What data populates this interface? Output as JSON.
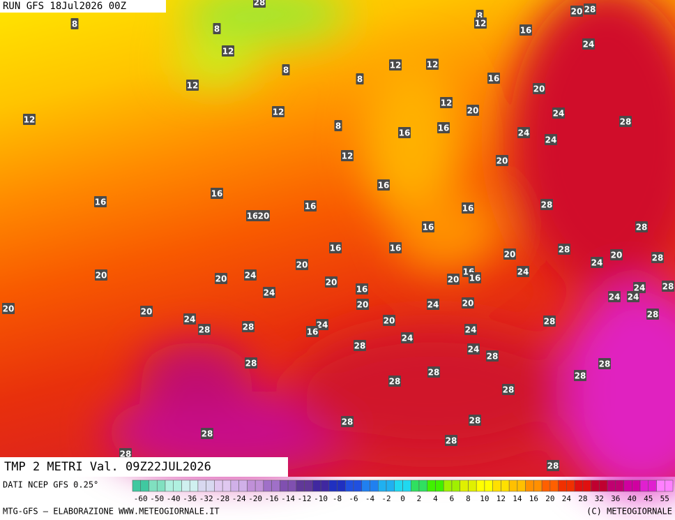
{
  "header": {
    "run": "RUN GFS 18Jul2026 00Z"
  },
  "title": "TMP 2 METRI Val. 09Z22JUL2026",
  "map_labels": [
    8,
    8,
    12,
    8,
    12,
    12,
    12,
    8,
    8,
    12,
    12,
    12,
    16,
    16,
    12,
    16,
    8,
    12,
    16,
    20,
    28,
    24,
    16,
    20,
    20,
    24,
    28,
    24,
    24,
    20,
    16,
    16,
    16,
    28,
    16,
    16,
    20,
    16,
    28,
    16,
    16,
    28,
    20,
    20,
    28,
    24,
    20,
    24,
    16,
    16,
    20,
    20,
    24,
    20,
    28,
    24,
    20,
    16,
    24,
    24,
    24,
    20,
    24,
    20,
    20,
    20,
    28,
    24,
    20,
    28,
    24,
    16,
    28,
    28,
    24,
    24,
    28,
    24,
    28,
    28,
    28,
    28,
    28,
    28,
    28,
    28,
    28,
    28,
    28,
    28,
    28,
    28
  ],
  "footer": {
    "source": "DATI NCEP GFS 0.25°",
    "credit": "MTG-GFS — ELABORAZIONE WWW.METEOGIORNALE.IT",
    "copyright": "(C) METEOGIORNALE"
  },
  "colorbar": {
    "ticks": [
      -60,
      -50,
      -40,
      -36,
      -32,
      -28,
      -24,
      -20,
      -16,
      -14,
      -12,
      -10,
      -8,
      -6,
      -4,
      -2,
      0,
      2,
      4,
      6,
      8,
      10,
      12,
      14,
      16,
      20,
      24,
      28,
      32,
      36,
      40,
      45,
      55
    ],
    "colors": [
      "#40c8a0",
      "#80e0c0",
      "#b0f0e0",
      "#d0f0f0",
      "#d8d8f0",
      "#e0c8f0",
      "#d0b0e8",
      "#c090d8",
      "#a070c8",
      "#8050b0",
      "#603898",
      "#4028a0",
      "#2030c0",
      "#2050e0",
      "#2080f0",
      "#20b0f0",
      "#20d8f0",
      "#30e060",
      "#40f000",
      "#a0f000",
      "#e0f000",
      "#ffff00",
      "#ffe000",
      "#ffc000",
      "#ff9000",
      "#ff6000",
      "#f03000",
      "#e01010",
      "#c00030",
      "#c00070",
      "#d000a0",
      "#e020d0",
      "#ff80ff"
    ]
  }
}
